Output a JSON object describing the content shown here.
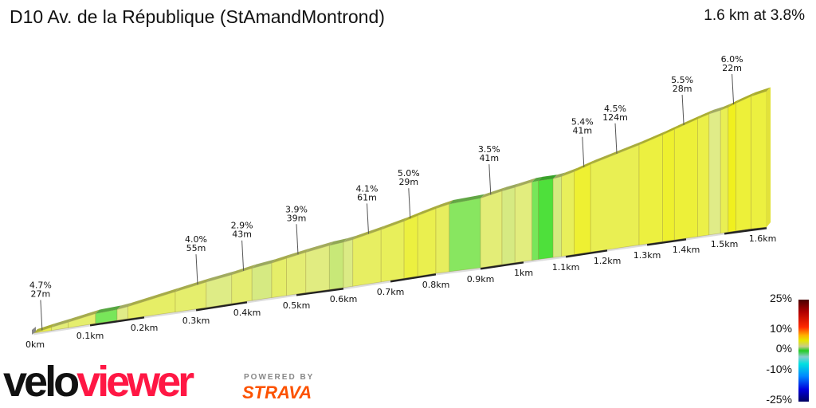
{
  "header": {
    "title": "D10 Av. de la République (StAmandMontrond)",
    "summary": "1.6 km at 3.8%"
  },
  "chart_data": {
    "type": "area",
    "xlabel": "",
    "ylabel": "",
    "x_ticks": [
      "0km",
      "0.1km",
      "0.2km",
      "0.3km",
      "0.4km",
      "0.5km",
      "0.6km",
      "0.7km",
      "0.8km",
      "0.9km",
      "1km",
      "1.1km",
      "1.2km",
      "1.3km",
      "1.4km",
      "1.5km",
      "1.6km"
    ],
    "xlim_km": [
      0,
      1.6
    ],
    "annotations": [
      {
        "km": 0.01,
        "gradient": "4.7%",
        "length": "27m"
      },
      {
        "km": 0.3,
        "gradient": "4.0%",
        "length": "55m"
      },
      {
        "km": 0.39,
        "gradient": "2.9%",
        "length": "43m"
      },
      {
        "km": 0.5,
        "gradient": "3.9%",
        "length": "39m"
      },
      {
        "km": 0.65,
        "gradient": "4.1%",
        "length": "61m"
      },
      {
        "km": 0.74,
        "gradient": "5.0%",
        "length": "29m"
      },
      {
        "km": 0.92,
        "gradient": "3.5%",
        "length": "41m"
      },
      {
        "km": 1.14,
        "gradient": "5.4%",
        "length": "41m"
      },
      {
        "km": 1.22,
        "gradient": "4.5%",
        "length": "124m"
      },
      {
        "km": 1.39,
        "gradient": "5.5%",
        "length": "28m"
      },
      {
        "km": 1.52,
        "gradient": "6.0%",
        "length": "22m"
      }
    ],
    "segments": [
      [
        0,
        0.03,
        4.7
      ],
      [
        0.03,
        0.06,
        3.5
      ],
      [
        0.06,
        0.11,
        3.8
      ],
      [
        0.11,
        0.15,
        1.0
      ],
      [
        0.15,
        0.17,
        3.0
      ],
      [
        0.17,
        0.26,
        4.0
      ],
      [
        0.26,
        0.32,
        3.8
      ],
      [
        0.32,
        0.37,
        2.9
      ],
      [
        0.37,
        0.41,
        3.7
      ],
      [
        0.41,
        0.45,
        2.6
      ],
      [
        0.45,
        0.48,
        3.9
      ],
      [
        0.48,
        0.52,
        3.6
      ],
      [
        0.52,
        0.57,
        3.2
      ],
      [
        0.57,
        0.6,
        2.0
      ],
      [
        0.6,
        0.62,
        2.8
      ],
      [
        0.62,
        0.68,
        4.1
      ],
      [
        0.68,
        0.73,
        4.3
      ],
      [
        0.73,
        0.76,
        5.0
      ],
      [
        0.76,
        0.8,
        4.6
      ],
      [
        0.8,
        0.83,
        4.2
      ],
      [
        0.83,
        0.9,
        1.2
      ],
      [
        0.9,
        0.95,
        3.5
      ],
      [
        0.95,
        0.98,
        2.6
      ],
      [
        0.98,
        1.02,
        3.3
      ],
      [
        1.02,
        1.035,
        1.0
      ],
      [
        1.035,
        1.07,
        0.2
      ],
      [
        1.07,
        1.09,
        2.5
      ],
      [
        1.09,
        1.12,
        4.3
      ],
      [
        1.12,
        1.16,
        5.4
      ],
      [
        1.16,
        1.28,
        4.5
      ],
      [
        1.28,
        1.34,
        5.0
      ],
      [
        1.34,
        1.37,
        5.5
      ],
      [
        1.37,
        1.43,
        5.2
      ],
      [
        1.43,
        1.46,
        4.8
      ],
      [
        1.46,
        1.49,
        3.0
      ],
      [
        1.49,
        1.51,
        4.5
      ],
      [
        1.51,
        1.53,
        6.0
      ],
      [
        1.53,
        1.57,
        5.2
      ],
      [
        1.57,
        1.6,
        5.0
      ]
    ],
    "legend": {
      "labels": [
        "25%",
        "10%",
        "0%",
        "-10%",
        "-25%"
      ]
    }
  },
  "branding": {
    "velo": "velo",
    "viewer": "viewer",
    "powered_by": "POWERED BY",
    "strava": "STRAVA"
  }
}
